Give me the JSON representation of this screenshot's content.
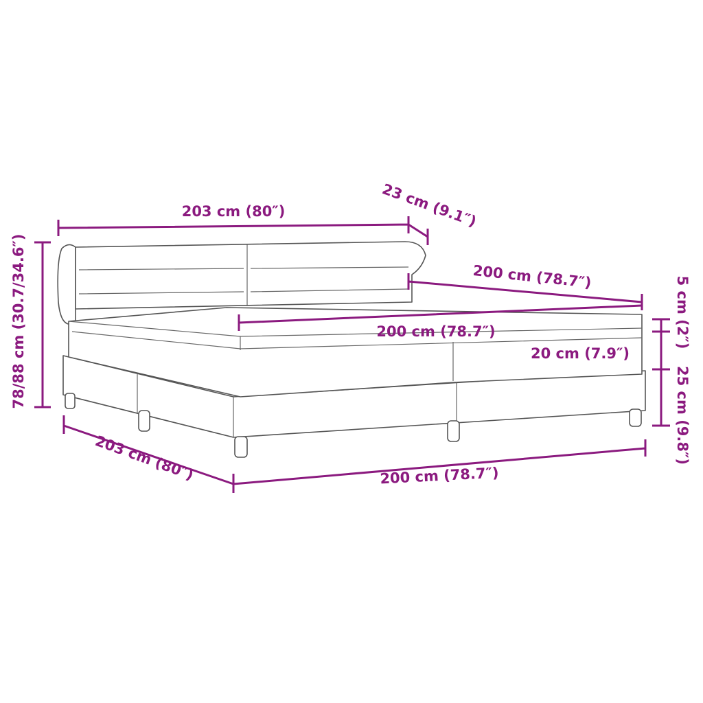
{
  "accent_color": "#8b1a7f",
  "dimensions": {
    "headboard_width": "203 cm (80″)",
    "headboard_depth": "23 cm (9.1″)",
    "mattress_length": "200 cm (78.7″)",
    "mattress_width": "200 cm (78.7″)",
    "topper_height": "5 cm (2″)",
    "mattress_height": "20 cm (7.9″)",
    "base_height": "25 cm (9.8″)",
    "total_height": "78/88 cm (30.7/34.6″)",
    "bed_length": "203 cm (80″)",
    "bed_width": "200 cm (78.7″)"
  }
}
